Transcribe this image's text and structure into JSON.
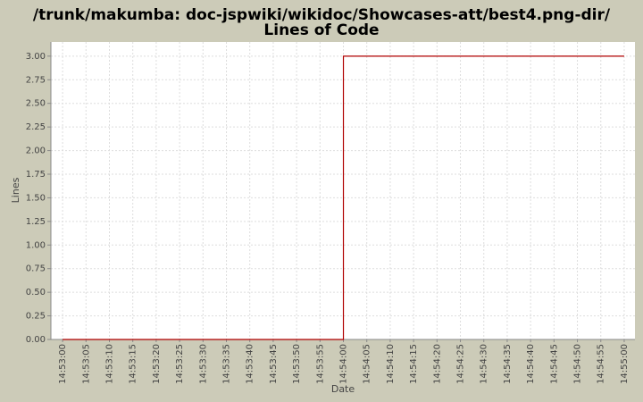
{
  "chart_data": {
    "type": "line",
    "title": [
      "/trunk/makumba: doc-jspwiki/wikidoc/Showcases-att/best4.png-dir/",
      "Lines of Code"
    ],
    "x_label": "Date",
    "y_label": "Lines",
    "x": [
      "14:53:00",
      "14:54:00",
      "14:54:00",
      "14:55:00"
    ],
    "series": [
      {
        "name": "Lines",
        "color": "#b00000",
        "values": [
          0,
          0,
          3,
          3
        ]
      }
    ],
    "xlim": [
      "14:52:57.5",
      "14:55:02.3"
    ],
    "xticks": [
      "14:53:00",
      "14:53:05",
      "14:53:10",
      "14:53:15",
      "14:53:20",
      "14:53:25",
      "14:53:30",
      "14:53:35",
      "14:53:40",
      "14:53:45",
      "14:53:50",
      "14:53:55",
      "14:54:00",
      "14:54:05",
      "14:54:10",
      "14:54:15",
      "14:54:20",
      "14:54:25",
      "14:54:30",
      "14:54:35",
      "14:54:40",
      "14:54:45",
      "14:54:50",
      "14:54:55",
      "14:55:00"
    ],
    "ylim": [
      0,
      3.15
    ],
    "yticks": [
      {
        "value": 0,
        "label": "0.00"
      },
      {
        "value": 0.25,
        "label": "0.25"
      },
      {
        "value": 0.5,
        "label": "0.50"
      },
      {
        "value": 0.75,
        "label": "0.75"
      },
      {
        "value": 1,
        "label": "1.00"
      },
      {
        "value": 1.25,
        "label": "1.25"
      },
      {
        "value": 1.5,
        "label": "1.50"
      },
      {
        "value": 1.75,
        "label": "1.75"
      },
      {
        "value": 2,
        "label": "2.00"
      },
      {
        "value": 2.25,
        "label": "2.25"
      },
      {
        "value": 2.5,
        "label": "2.50"
      },
      {
        "value": 2.75,
        "label": "2.75"
      },
      {
        "value": 3,
        "label": "3.00"
      }
    ],
    "grid": true
  }
}
